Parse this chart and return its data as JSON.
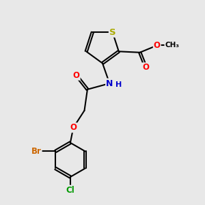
{
  "bg_color": "#e8e8e8",
  "bond_color": "#000000",
  "bond_width": 1.5,
  "dbo": 0.055,
  "atom_colors": {
    "S": "#aaaa00",
    "O": "#ff0000",
    "N": "#0000cc",
    "Br": "#cc6600",
    "Cl": "#009900",
    "C": "#000000"
  },
  "fs": 8.5,
  "fig_size": [
    3.0,
    3.0
  ],
  "dpi": 100
}
